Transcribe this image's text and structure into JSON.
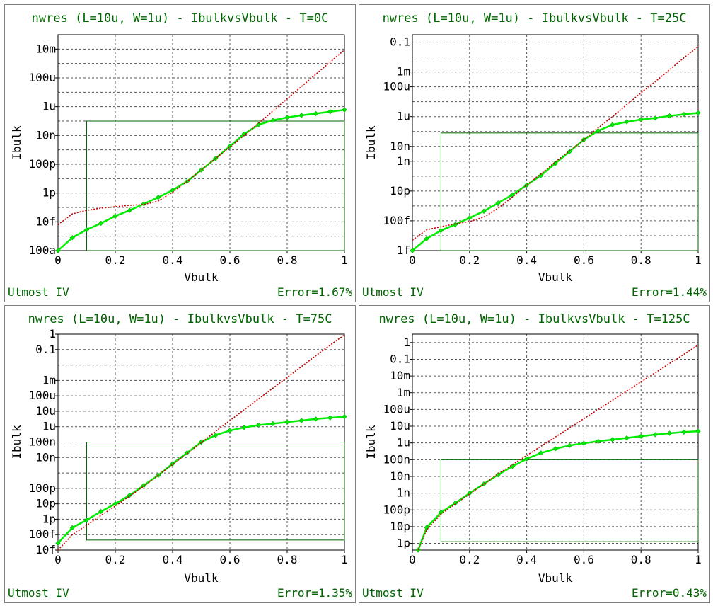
{
  "chart_data": [
    {
      "type": "line",
      "title": "nwres (L=10u, W=1u) - IbulkvsVbulk - T=0C",
      "xlabel": "Vbulk",
      "ylabel": "Ibulk",
      "xlim": [
        0,
        1
      ],
      "xticks": [
        "0",
        "0.2",
        "0.4",
        "0.6",
        "0.8",
        "1"
      ],
      "y_scale": "log",
      "ylim_exp": [
        -16,
        -1
      ],
      "yticks": [
        {
          "label": "10m",
          "exp": -2
        },
        {
          "label": "100u",
          "exp": -4
        },
        {
          "label": "1u",
          "exp": -6
        },
        {
          "label": "10n",
          "exp": -8
        },
        {
          "label": "100p",
          "exp": -10
        },
        {
          "label": "1p",
          "exp": -12
        },
        {
          "label": "10f",
          "exp": -14
        },
        {
          "label": "100a",
          "exp": -16
        }
      ],
      "y_grid_exp": [
        -16,
        -15,
        -14,
        -13,
        -12,
        -11,
        -10,
        -9,
        -8,
        -7,
        -6,
        -5,
        -4,
        -3,
        -2,
        -1
      ],
      "fit_window": {
        "vmin": 0.1,
        "vmax": 1.0,
        "exp_lo": -16,
        "exp_hi": -7
      },
      "series": [
        {
          "color": "#00ee00",
          "style": "measured",
          "x": [
            0,
            0.05,
            0.1,
            0.15,
            0.2,
            0.25,
            0.3,
            0.35,
            0.4,
            0.45,
            0.5,
            0.55,
            0.6,
            0.65,
            0.7,
            0.75,
            0.8,
            0.85,
            0.9,
            0.95,
            1.0
          ],
          "y_exp": [
            -16,
            -15.1,
            -14.55,
            -14.1,
            -13.6,
            -13.2,
            -12.75,
            -12.3,
            -11.8,
            -11.2,
            -10.4,
            -9.6,
            -8.75,
            -7.9,
            -7.25,
            -6.95,
            -6.75,
            -6.6,
            -6.48,
            -6.35,
            -6.22
          ]
        },
        {
          "color": "#cc0000",
          "style": "model",
          "x": [
            0,
            0.05,
            0.1,
            0.15,
            0.2,
            0.25,
            0.3,
            0.35,
            0.4,
            0.45,
            0.5,
            0.55,
            0.6,
            0.65,
            0.7,
            0.75,
            0.8,
            0.85,
            0.9,
            0.95,
            1.0
          ],
          "y_exp": [
            -14.2,
            -13.45,
            -13.2,
            -13.05,
            -12.95,
            -12.85,
            -12.8,
            -12.55,
            -11.95,
            -11.2,
            -10.4,
            -9.6,
            -8.8,
            -8.0,
            -7.15,
            -6.3,
            -5.45,
            -4.6,
            -3.75,
            -2.9,
            -2.05
          ]
        }
      ],
      "footer_left": "Utmost IV",
      "footer_right": "Error=1.67%"
    },
    {
      "type": "line",
      "title": "nwres (L=10u, W=1u) - IbulkvsVbulk - T=25C",
      "xlabel": "Vbulk",
      "ylabel": "Ibulk",
      "xlim": [
        0,
        1
      ],
      "xticks": [
        "0",
        "0.2",
        "0.4",
        "0.6",
        "0.8",
        "1"
      ],
      "y_scale": "log",
      "ylim_exp": [
        -15,
        -0.5
      ],
      "yticks": [
        {
          "label": "0.1",
          "exp": -1
        },
        {
          "label": "1m",
          "exp": -3
        },
        {
          "label": "100u",
          "exp": -4
        },
        {
          "label": "1u",
          "exp": -6
        },
        {
          "label": "10n",
          "exp": -8
        },
        {
          "label": "1n",
          "exp": -9
        },
        {
          "label": "10p",
          "exp": -11
        },
        {
          "label": "100f",
          "exp": -13
        },
        {
          "label": "1f",
          "exp": -15
        }
      ],
      "y_grid_exp": [
        -15,
        -14,
        -13,
        -12,
        -11,
        -10,
        -9,
        -8,
        -7,
        -6,
        -5,
        -4,
        -3,
        -2,
        -1
      ],
      "fit_window": {
        "vmin": 0.1,
        "vmax": 1.0,
        "exp_lo": -15,
        "exp_hi": -7.1
      },
      "series": [
        {
          "color": "#00ee00",
          "style": "measured",
          "x": [
            0,
            0.05,
            0.1,
            0.15,
            0.2,
            0.25,
            0.3,
            0.35,
            0.4,
            0.45,
            0.5,
            0.55,
            0.6,
            0.65,
            0.7,
            0.75,
            0.8,
            0.85,
            0.9,
            0.95,
            1.0
          ],
          "y_exp": [
            -15,
            -14.2,
            -13.65,
            -13.25,
            -12.8,
            -12.35,
            -11.8,
            -11.25,
            -10.6,
            -9.95,
            -9.15,
            -8.35,
            -7.55,
            -6.95,
            -6.55,
            -6.35,
            -6.2,
            -6.1,
            -5.95,
            -5.85,
            -5.75
          ]
        },
        {
          "color": "#cc0000",
          "style": "model",
          "x": [
            0,
            0.05,
            0.1,
            0.15,
            0.2,
            0.25,
            0.3,
            0.35,
            0.4,
            0.45,
            0.5,
            0.55,
            0.6,
            0.65,
            0.7,
            0.75,
            0.8,
            0.85,
            0.9,
            0.95,
            1.0
          ],
          "y_exp": [
            -14.3,
            -13.6,
            -13.4,
            -13.2,
            -13.05,
            -12.75,
            -12.15,
            -11.4,
            -10.6,
            -9.85,
            -9.05,
            -8.3,
            -7.55,
            -6.75,
            -6.0,
            -5.2,
            -4.4,
            -3.65,
            -2.85,
            -2.05,
            -1.3
          ]
        }
      ],
      "footer_left": "Utmost IV",
      "footer_right": "Error=1.44%"
    },
    {
      "type": "line",
      "title": "nwres (L=10u, W=1u) - IbulkvsVbulk - T=75C",
      "xlabel": "Vbulk",
      "ylabel": "Ibulk",
      "xlim": [
        0,
        1
      ],
      "xticks": [
        "0",
        "0.2",
        "0.4",
        "0.6",
        "0.8",
        "1"
      ],
      "y_scale": "log",
      "ylim_exp": [
        -14,
        0
      ],
      "yticks": [
        {
          "label": "1",
          "exp": 0
        },
        {
          "label": "0.1",
          "exp": -1
        },
        {
          "label": "1m",
          "exp": -3
        },
        {
          "label": "100u",
          "exp": -4
        },
        {
          "label": "10u",
          "exp": -5
        },
        {
          "label": "1u",
          "exp": -6
        },
        {
          "label": "100n",
          "exp": -7
        },
        {
          "label": "10n",
          "exp": -8
        },
        {
          "label": "100p",
          "exp": -10
        },
        {
          "label": "10p",
          "exp": -11
        },
        {
          "label": "1p",
          "exp": -12
        },
        {
          "label": "100f",
          "exp": -13
        },
        {
          "label": "10f",
          "exp": -14
        }
      ],
      "y_grid_exp": [
        -14,
        -13,
        -12,
        -11,
        -10,
        -9,
        -8,
        -7,
        -6,
        -5,
        -4,
        -3,
        -2,
        -1,
        0
      ],
      "fit_window": {
        "vmin": 0.1,
        "vmax": 1.0,
        "exp_lo": -13.35,
        "exp_hi": -7
      },
      "series": [
        {
          "color": "#00ee00",
          "style": "measured",
          "x": [
            0,
            0.05,
            0.1,
            0.15,
            0.2,
            0.25,
            0.3,
            0.35,
            0.4,
            0.45,
            0.5,
            0.55,
            0.6,
            0.65,
            0.7,
            0.75,
            0.8,
            0.85,
            0.9,
            0.95,
            1.0
          ],
          "y_exp": [
            -13.55,
            -12.55,
            -12.05,
            -11.5,
            -11.0,
            -10.45,
            -9.8,
            -9.15,
            -8.4,
            -7.7,
            -7.0,
            -6.55,
            -6.25,
            -6.05,
            -5.9,
            -5.8,
            -5.7,
            -5.6,
            -5.5,
            -5.42,
            -5.35
          ]
        },
        {
          "color": "#cc0000",
          "style": "model",
          "x": [
            0,
            0.05,
            0.1,
            0.15,
            0.2,
            0.25,
            0.3,
            0.35,
            0.4,
            0.45,
            0.5,
            0.55,
            0.6,
            0.65,
            0.7,
            0.75,
            0.8,
            0.85,
            0.9,
            0.95,
            1.0
          ],
          "y_exp": [
            -14.0,
            -13.0,
            -12.4,
            -11.75,
            -11.15,
            -10.5,
            -9.85,
            -9.15,
            -8.45,
            -7.75,
            -7.05,
            -6.3,
            -5.6,
            -4.9,
            -4.2,
            -3.5,
            -2.8,
            -2.1,
            -1.4,
            -0.7,
            -0.05
          ]
        }
      ],
      "footer_left": "Utmost IV",
      "footer_right": "Error=1.35%"
    },
    {
      "type": "line",
      "title": "nwres (L=10u, W=1u) - IbulkvsVbulk - T=125C",
      "xlabel": "Vbulk",
      "ylabel": "Ibulk",
      "xlim": [
        0,
        1
      ],
      "xticks": [
        "0",
        "0.2",
        "0.4",
        "0.6",
        "0.8",
        "1"
      ],
      "y_scale": "log",
      "ylim_exp": [
        -12.4,
        0.5
      ],
      "yticks": [
        {
          "label": "1",
          "exp": 0
        },
        {
          "label": "0.1",
          "exp": -1
        },
        {
          "label": "10m",
          "exp": -2
        },
        {
          "label": "1m",
          "exp": -3
        },
        {
          "label": "100u",
          "exp": -4
        },
        {
          "label": "10u",
          "exp": -5
        },
        {
          "label": "1u",
          "exp": -6
        },
        {
          "label": "100n",
          "exp": -7
        },
        {
          "label": "10n",
          "exp": -8
        },
        {
          "label": "1n",
          "exp": -9
        },
        {
          "label": "100p",
          "exp": -10
        },
        {
          "label": "10p",
          "exp": -11
        },
        {
          "label": "1p",
          "exp": -12
        }
      ],
      "y_grid_exp": [
        -12,
        -11,
        -10,
        -9,
        -8,
        -7,
        -6,
        -5,
        -4,
        -3,
        -2,
        -1,
        0
      ],
      "fit_window": {
        "vmin": 0.1,
        "vmax": 1.0,
        "exp_lo": -11.9,
        "exp_hi": -7
      },
      "series": [
        {
          "color": "#00ee00",
          "style": "measured",
          "x": [
            0.02,
            0.05,
            0.1,
            0.15,
            0.2,
            0.25,
            0.3,
            0.35,
            0.4,
            0.45,
            0.5,
            0.55,
            0.6,
            0.65,
            0.7,
            0.75,
            0.8,
            0.85,
            0.9,
            0.95,
            1.0
          ],
          "y_exp": [
            -12.4,
            -11.05,
            -10.15,
            -9.6,
            -9.0,
            -8.45,
            -7.9,
            -7.4,
            -6.95,
            -6.6,
            -6.35,
            -6.15,
            -6.02,
            -5.9,
            -5.8,
            -5.7,
            -5.6,
            -5.5,
            -5.42,
            -5.35,
            -5.3
          ]
        },
        {
          "color": "#cc0000",
          "style": "model",
          "x": [
            0.02,
            0.05,
            0.1,
            0.15,
            0.2,
            0.25,
            0.3,
            0.35,
            0.4,
            0.45,
            0.5,
            0.55,
            0.6,
            0.65,
            0.7,
            0.75,
            0.8,
            0.85,
            0.9,
            0.95,
            1.0
          ],
          "y_exp": [
            -12.4,
            -11.2,
            -10.25,
            -9.65,
            -9.05,
            -8.45,
            -7.85,
            -7.3,
            -6.75,
            -6.2,
            -5.65,
            -5.1,
            -4.55,
            -4.0,
            -3.45,
            -2.9,
            -2.35,
            -1.8,
            -1.25,
            -0.7,
            -0.15
          ]
        }
      ],
      "footer_left": "Utmost IV",
      "footer_right": "Error=0.43%"
    }
  ]
}
